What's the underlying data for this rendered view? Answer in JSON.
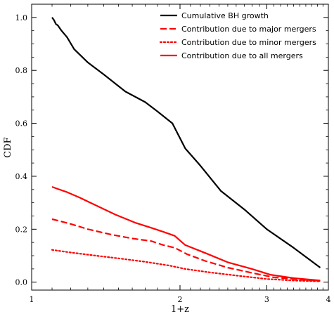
{
  "chart_data": {
    "type": "line",
    "xlabel": "1+z",
    "ylabel": "CDF",
    "xscale": "log",
    "xlim": [
      1,
      4
    ],
    "ylim": [
      -0.03,
      1.05
    ],
    "xticks": [
      {
        "value": 1,
        "label": "1"
      },
      {
        "value": 2,
        "label": "2"
      },
      {
        "value": 3,
        "label": "3"
      },
      {
        "value": 4,
        "label": "4"
      }
    ],
    "yticks": [
      {
        "value": 0.0,
        "label": "0.0"
      },
      {
        "value": 0.2,
        "label": "0.2"
      },
      {
        "value": 0.4,
        "label": "0.4"
      },
      {
        "value": 0.6,
        "label": "0.6"
      },
      {
        "value": 0.8,
        "label": "0.8"
      },
      {
        "value": 1.0,
        "label": "1.0"
      }
    ],
    "grid": false,
    "legend_position": "top-right",
    "series": [
      {
        "name": "Cumulative BH growth",
        "color": "#000000",
        "style": "solid",
        "x": [
          1.1,
          1.11,
          1.12,
          1.13,
          1.15,
          1.18,
          1.22,
          1.3,
          1.4,
          1.55,
          1.7,
          1.8,
          1.93,
          2.05,
          2.2,
          2.42,
          2.7,
          3.0,
          3.4,
          3.85
        ],
        "y": [
          1.0,
          0.99,
          0.975,
          0.97,
          0.95,
          0.925,
          0.88,
          0.83,
          0.785,
          0.72,
          0.68,
          0.645,
          0.6,
          0.505,
          0.44,
          0.345,
          0.275,
          0.2,
          0.13,
          0.055
        ]
      },
      {
        "name": "Contribution due to major mergers",
        "color": "#ff0000",
        "style": "dashed",
        "x": [
          1.1,
          1.2,
          1.3,
          1.45,
          1.6,
          1.75,
          1.85,
          1.95,
          2.07,
          2.25,
          2.5,
          2.8,
          3.1,
          3.5,
          3.85
        ],
        "y": [
          0.238,
          0.22,
          0.2,
          0.18,
          0.165,
          0.155,
          0.14,
          0.13,
          0.105,
          0.08,
          0.055,
          0.035,
          0.018,
          0.01,
          0.004
        ]
      },
      {
        "name": "Contribution due to minor mergers",
        "color": "#ff0000",
        "style": "dotted",
        "x": [
          1.1,
          1.2,
          1.35,
          1.5,
          1.7,
          1.9,
          2.05,
          2.3,
          2.6,
          3.0,
          3.4,
          3.85
        ],
        "y": [
          0.122,
          0.112,
          0.1,
          0.09,
          0.077,
          0.063,
          0.05,
          0.037,
          0.025,
          0.012,
          0.006,
          0.003
        ]
      },
      {
        "name": "Contribution due to all mergers",
        "color": "#ff0000",
        "style": "solid",
        "x": [
          1.1,
          1.13,
          1.18,
          1.25,
          1.35,
          1.48,
          1.62,
          1.75,
          1.85,
          1.95,
          2.05,
          2.25,
          2.5,
          2.8,
          3.05,
          3.4,
          3.85
        ],
        "y": [
          0.36,
          0.352,
          0.34,
          0.32,
          0.29,
          0.255,
          0.225,
          0.205,
          0.19,
          0.175,
          0.14,
          0.11,
          0.075,
          0.05,
          0.028,
          0.015,
          0.006
        ]
      }
    ]
  }
}
